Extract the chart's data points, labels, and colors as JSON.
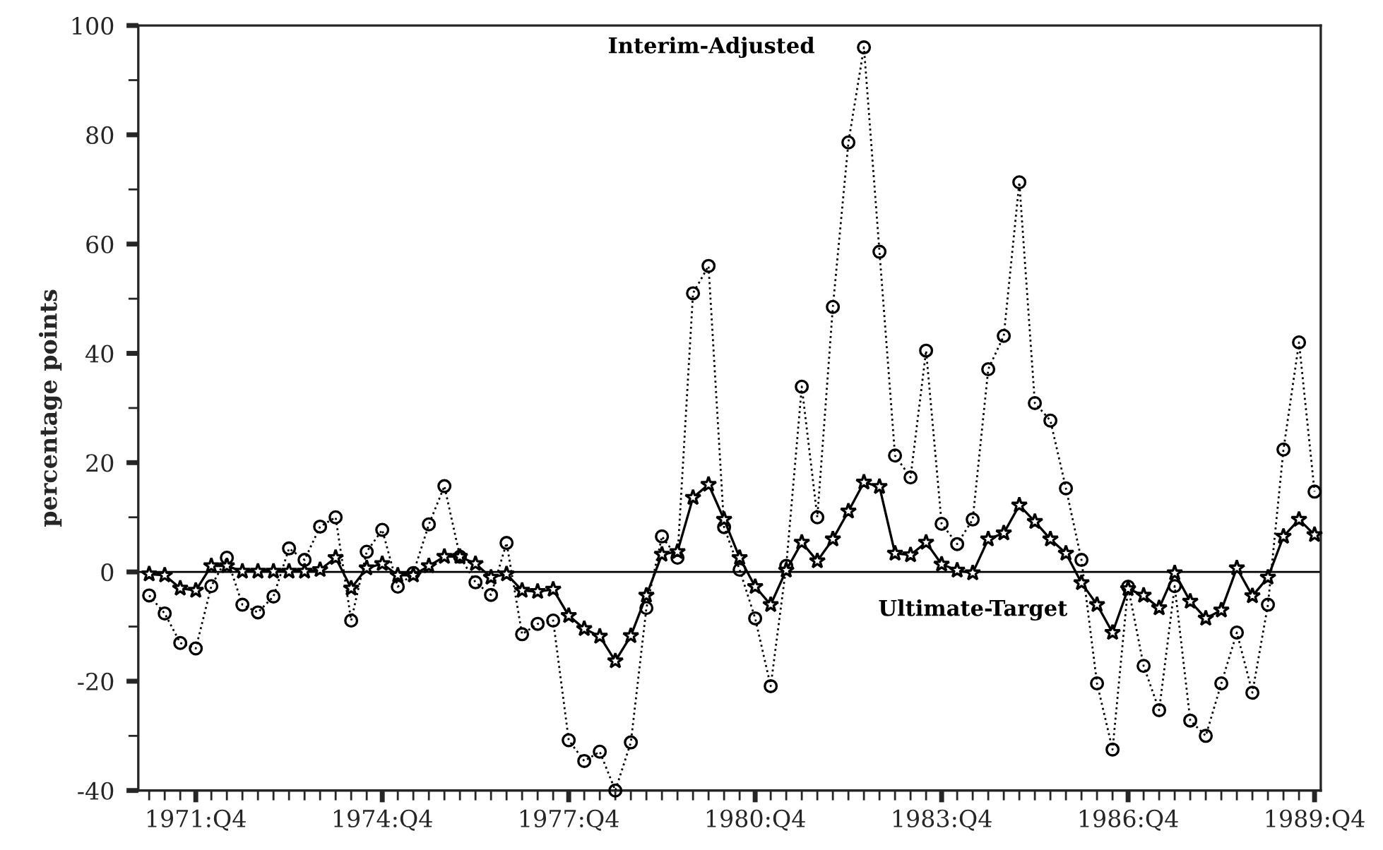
{
  "chart_data": {
    "type": "line",
    "ylabel": "percentage points",
    "categories": [
      null,
      null,
      null,
      "1971:Q4",
      null,
      null,
      null,
      null,
      null,
      null,
      null,
      null,
      null,
      null,
      null,
      "1974:Q4",
      null,
      null,
      null,
      null,
      null,
      null,
      null,
      null,
      null,
      null,
      null,
      "1977:Q4",
      null,
      null,
      null,
      null,
      null,
      null,
      null,
      null,
      null,
      null,
      null,
      "1980:Q4",
      null,
      null,
      null,
      null,
      null,
      null,
      null,
      null,
      null,
      null,
      null,
      "1983:Q4",
      null,
      null,
      null,
      null,
      null,
      null,
      null,
      null,
      null,
      null,
      null,
      "1986:Q4",
      null,
      null,
      null,
      null,
      null,
      null,
      null,
      null,
      null,
      null,
      null,
      "1989:Q4"
    ],
    "series": [
      {
        "name": "Interim-Adjusted",
        "color": "#000000",
        "marker": "circle",
        "line_style": "dotted",
        "values": [
          -4.3,
          -7.6,
          -13,
          -14,
          -2.6,
          2.6,
          -6,
          -7.4,
          -4.5,
          4.3,
          2.2,
          8.3,
          10,
          -8.9,
          3.7,
          7.7,
          -2.7,
          -0.2,
          8.7,
          15.7,
          2.8,
          -1.9,
          -4.2,
          5.3,
          -11.4,
          -9.5,
          -8.9,
          -30.8,
          -34.6,
          -32.9,
          -40,
          -31.2,
          -6.6,
          6.5,
          2.6,
          51,
          56,
          8.2,
          0.4,
          -8.5,
          -20.9,
          1.1,
          33.9,
          10,
          48.5,
          78.6,
          96,
          58.6,
          21.3,
          17.3,
          40.5,
          8.8,
          5.1,
          9.6,
          37.1,
          43.2,
          71.3,
          30.9,
          27.7,
          15.3,
          2.2,
          -20.4,
          -32.5,
          -2.7,
          -17.2,
          -25.3,
          -2.6,
          -27.2,
          -30,
          -20.4,
          -11.1,
          -22.1,
          -6,
          22.4,
          42,
          14.7
        ]
      },
      {
        "name": "Ultimate-Target",
        "color": "#000000",
        "marker": "star",
        "line_style": "solid",
        "values": [
          -0.4,
          -0.6,
          -3,
          -3.4,
          1.1,
          1.1,
          0.1,
          0.1,
          0.1,
          0.1,
          0.1,
          0.4,
          2.6,
          -3,
          0.7,
          1.5,
          -0.6,
          -0.6,
          1.1,
          2.8,
          2.8,
          1.5,
          -1,
          -0.4,
          -3.4,
          -3.6,
          -3.2,
          -8,
          -10.4,
          -11.8,
          -16.3,
          -11.7,
          -4.3,
          3.2,
          3.7,
          13.6,
          16,
          9.6,
          2.6,
          -2.7,
          -6,
          0.3,
          5.4,
          2,
          6,
          11.1,
          16.4,
          15.6,
          3.4,
          3.1,
          5.4,
          1.4,
          0.3,
          -0.2,
          6,
          7.1,
          12.2,
          9.2,
          6,
          3.4,
          -2,
          -6,
          -11.1,
          -3.1,
          -4.3,
          -6.6,
          -0.2,
          -5.4,
          -8.5,
          -7,
          0.7,
          -4.4,
          -1,
          6.5,
          9.6,
          6.8
        ]
      }
    ],
    "ylim": [
      -40,
      100
    ],
    "yticks": [
      -40,
      -20,
      0,
      20,
      40,
      60,
      80,
      100
    ],
    "ref_lines": [
      {
        "axis": "y",
        "value": 0,
        "color": "#000000",
        "line_style": "solid"
      }
    ],
    "grid": false,
    "legend": false
  }
}
